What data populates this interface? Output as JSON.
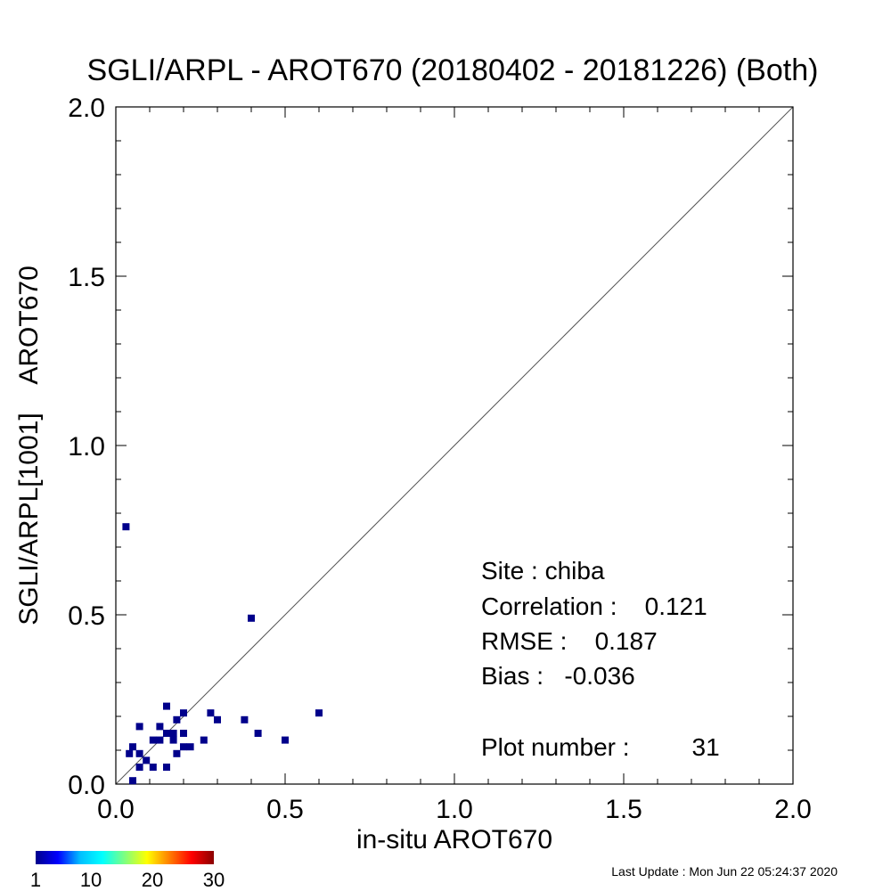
{
  "chart_data": {
    "type": "scatter",
    "title": "SGLI/ARPL - AROT670 (20180402 - 20181226) (Both)",
    "xlabel": "in-situ AROT670",
    "ylabel": "SGLI/ARPL[1001]    AROT670",
    "xlim": [
      0,
      2
    ],
    "ylim": [
      0,
      2
    ],
    "x_ticks": [
      "0.0",
      "0.5",
      "1.0",
      "1.5",
      "2.0"
    ],
    "y_ticks": [
      "0.0",
      "0.5",
      "1.0",
      "1.5",
      "2.0"
    ],
    "reference_line": "1:1",
    "grid": false,
    "point_color": "#00008b",
    "points": [
      {
        "x": 0.03,
        "y": 0.76
      },
      {
        "x": 0.4,
        "y": 0.49
      },
      {
        "x": 0.15,
        "y": 0.23
      },
      {
        "x": 0.2,
        "y": 0.21
      },
      {
        "x": 0.28,
        "y": 0.21
      },
      {
        "x": 0.6,
        "y": 0.21
      },
      {
        "x": 0.18,
        "y": 0.19
      },
      {
        "x": 0.3,
        "y": 0.19
      },
      {
        "x": 0.38,
        "y": 0.19
      },
      {
        "x": 0.07,
        "y": 0.17
      },
      {
        "x": 0.13,
        "y": 0.17
      },
      {
        "x": 0.15,
        "y": 0.15
      },
      {
        "x": 0.17,
        "y": 0.15
      },
      {
        "x": 0.2,
        "y": 0.15
      },
      {
        "x": 0.42,
        "y": 0.15
      },
      {
        "x": 0.11,
        "y": 0.13
      },
      {
        "x": 0.13,
        "y": 0.13
      },
      {
        "x": 0.17,
        "y": 0.13
      },
      {
        "x": 0.26,
        "y": 0.13
      },
      {
        "x": 0.5,
        "y": 0.13
      },
      {
        "x": 0.05,
        "y": 0.11
      },
      {
        "x": 0.2,
        "y": 0.11
      },
      {
        "x": 0.22,
        "y": 0.11
      },
      {
        "x": 0.04,
        "y": 0.09
      },
      {
        "x": 0.07,
        "y": 0.09
      },
      {
        "x": 0.18,
        "y": 0.09
      },
      {
        "x": 0.09,
        "y": 0.07
      },
      {
        "x": 0.07,
        "y": 0.05
      },
      {
        "x": 0.11,
        "y": 0.05
      },
      {
        "x": 0.15,
        "y": 0.05
      },
      {
        "x": 0.05,
        "y": 0.01
      }
    ],
    "stats": {
      "site": "Site : chiba",
      "correlation": "Correlation :    0.121",
      "rmse": "RMSE :    0.187",
      "bias": "Bias :   -0.036",
      "plot_number": "Plot number :         31"
    },
    "colorbar": {
      "ticks": [
        "1",
        "10",
        "20",
        "30"
      ],
      "colors": [
        "#00008b",
        "#0000ff",
        "#00bfff",
        "#00ffff",
        "#7fff7f",
        "#ffff00",
        "#ff7f00",
        "#ff0000",
        "#8b0000"
      ]
    },
    "last_update": "Last Update : Mon Jun 22 05:24:37 2020"
  }
}
